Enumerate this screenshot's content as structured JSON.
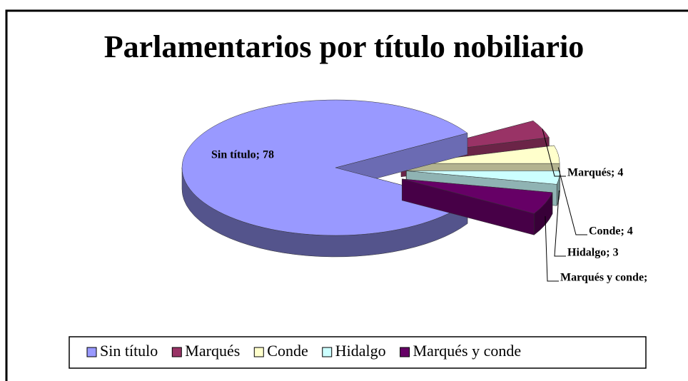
{
  "chart_data": {
    "type": "pie3d",
    "title": "Parlamentarios por título nobiliario",
    "categories": [
      "Sin título",
      "Marqués",
      "Conde",
      "Hidalgo",
      "Marqués y conde"
    ],
    "values": [
      78,
      4,
      4,
      3,
      5
    ],
    "value_labels": [
      "Sin título; 78",
      "Marqués; 4",
      "Conde; 4",
      "Hidalgo; 3",
      "Marqués y conde;"
    ],
    "colors": [
      "#9999ff",
      "#993366",
      "#ffffcc",
      "#ccffff",
      "#660066"
    ],
    "legend": "bottom"
  }
}
